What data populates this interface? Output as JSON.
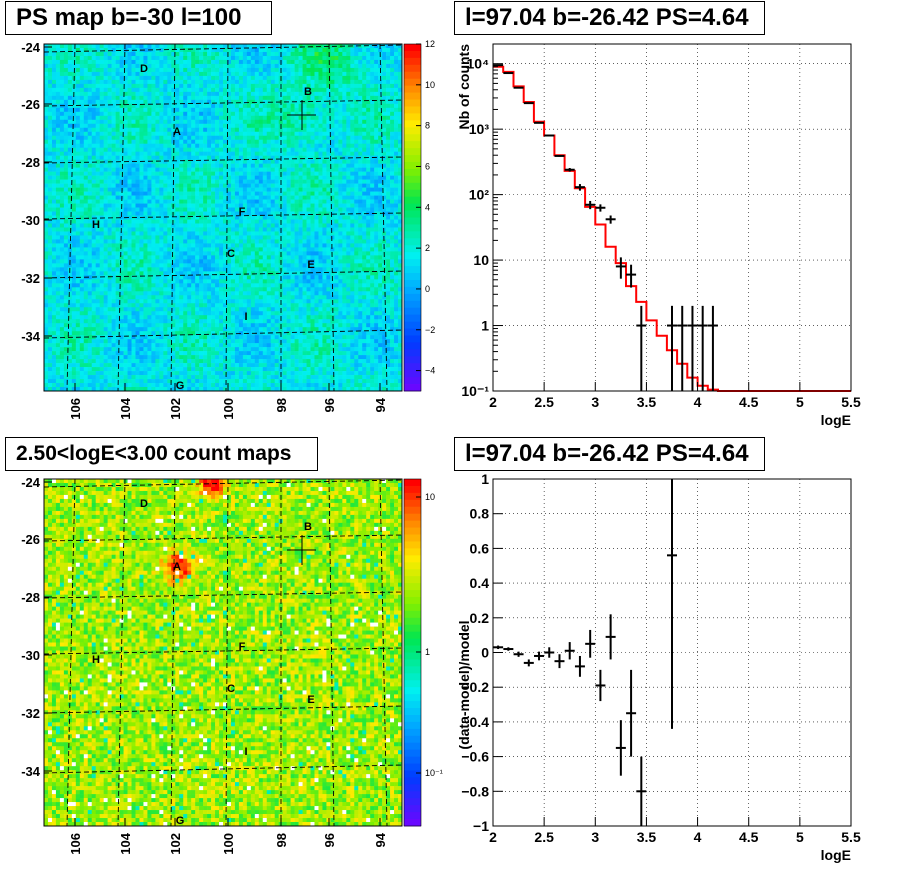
{
  "panels": {
    "ps_map": {
      "title": "PS map b=-30 l=100",
      "y_ticks": [
        "-24",
        "-26",
        "-28",
        "-30",
        "-32",
        "-34"
      ],
      "x_ticks": [
        "106",
        "104",
        "102",
        "100",
        "98",
        "96",
        "94"
      ],
      "colorbar_ticks": [
        "12",
        "10",
        "8",
        "6",
        "4",
        "2",
        "0",
        "−2",
        "−4"
      ],
      "colorbar_range": [
        -5,
        12
      ],
      "sources": [
        "D",
        "B",
        "A",
        "F",
        "H",
        "C",
        "E",
        "I",
        "G"
      ],
      "grid": true
    },
    "count_map": {
      "title": "2.50<logE<3.00 count maps",
      "y_ticks": [
        "-24",
        "-26",
        "-28",
        "-30",
        "-32",
        "-34"
      ],
      "x_ticks": [
        "106",
        "104",
        "102",
        "100",
        "98",
        "96",
        "94"
      ],
      "colorbar_ticks": [
        "10",
        "1",
        "10⁻¹"
      ],
      "colorbar_scale": "log",
      "sources": [
        "D",
        "B",
        "A",
        "F",
        "H",
        "C",
        "E",
        "I",
        "G"
      ],
      "grid": true
    }
  },
  "chart_data": [
    {
      "type": "line",
      "title": "l=97.04 b=-26.42 PS=4.64",
      "xlabel": "logE",
      "ylabel": "Nb of counts",
      "xlim": [
        2,
        5.5
      ],
      "ylim": [
        0.1,
        20000
      ],
      "yscale": "log",
      "grid": true,
      "x_ticks": [
        "2",
        "2.5",
        "3",
        "3.5",
        "4",
        "4.5",
        "5",
        "5.5"
      ],
      "y_ticks": [
        "10⁻¹",
        "1",
        "10",
        "10²",
        "10³",
        "10⁴"
      ],
      "model": {
        "color": "#ff0000",
        "bin_edges": [
          2.0,
          2.1,
          2.2,
          2.3,
          2.4,
          2.5,
          2.6,
          2.7,
          2.8,
          2.9,
          3.0,
          3.1,
          3.2,
          3.3,
          3.4,
          3.5,
          3.6,
          3.7,
          3.8,
          3.9,
          4.0,
          4.1,
          4.2,
          5.5
        ],
        "values": [
          9000,
          7500,
          4500,
          2600,
          1300,
          800,
          400,
          230,
          125,
          65,
          35,
          16,
          9,
          4,
          2.3,
          1.2,
          0.7,
          0.42,
          0.26,
          0.16,
          0.12,
          0.105,
          0.1
        ]
      },
      "data": {
        "color": "#000000",
        "x": [
          2.05,
          2.15,
          2.25,
          2.35,
          2.45,
          2.55,
          2.65,
          2.75,
          2.85,
          2.95,
          3.05,
          3.15,
          3.25,
          3.35,
          3.45,
          3.75,
          3.85,
          3.95,
          4.05,
          4.15
        ],
        "y": [
          9500,
          7200,
          4300,
          2500,
          1250,
          800,
          390,
          240,
          130,
          70,
          63,
          42,
          8,
          6,
          1,
          1,
          1,
          1,
          1,
          1
        ],
        "ylo": [
          9400,
          7100,
          4250,
          2460,
          1220,
          780,
          380,
          225,
          115,
          60,
          55,
          36,
          5.2,
          3.8,
          0.1,
          0.1,
          0.1,
          0.1,
          0.1,
          0.1
        ],
        "yhi": [
          9600,
          7300,
          4350,
          2540,
          1280,
          820,
          400,
          255,
          145,
          80,
          71,
          48,
          11,
          8.5,
          2,
          2,
          2,
          2,
          2,
          2
        ]
      }
    },
    {
      "type": "scatter",
      "title": "l=97.04 b=-26.42 PS=4.64",
      "xlabel": "logE",
      "ylabel": "(data-model)/model",
      "xlim": [
        2,
        5.5
      ],
      "ylim": [
        -1,
        1
      ],
      "grid": true,
      "x_ticks": [
        "2",
        "2.5",
        "3",
        "3.5",
        "4",
        "4.5",
        "5",
        "5.5"
      ],
      "y_ticks": [
        "−1",
        "−0.8",
        "−0.6",
        "−0.4",
        "−0.2",
        "0",
        "0.2",
        "0.4",
        "0.6",
        "0.8",
        "1"
      ],
      "x": [
        2.05,
        2.15,
        2.25,
        2.35,
        2.45,
        2.55,
        2.65,
        2.75,
        2.85,
        2.95,
        3.05,
        3.15,
        3.25,
        3.35,
        3.45,
        3.75
      ],
      "y": [
        0.03,
        0.02,
        -0.01,
        -0.06,
        -0.02,
        0.0,
        -0.05,
        0.01,
        -0.08,
        0.05,
        -0.19,
        0.09,
        -0.55,
        -0.35,
        -0.8,
        0.56
      ],
      "err": [
        0.01,
        0.01,
        0.015,
        0.02,
        0.025,
        0.03,
        0.04,
        0.05,
        0.06,
        0.08,
        0.09,
        0.13,
        0.16,
        0.25,
        0.2,
        1.0
      ]
    }
  ]
}
